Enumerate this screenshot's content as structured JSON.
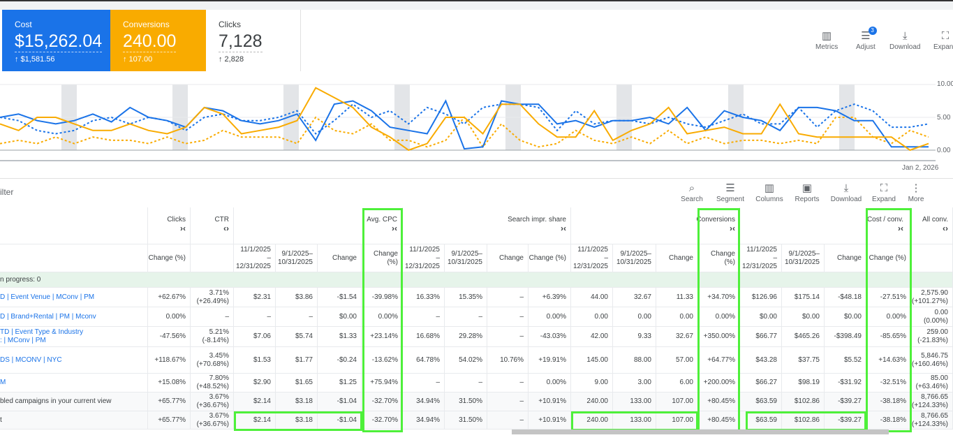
{
  "scorecards": [
    {
      "label": "Cost",
      "value": "$15,262.04",
      "delta": "↑ $1,581.56"
    },
    {
      "label": "Conversions",
      "value": "240.00",
      "delta": "↑ 107.00"
    },
    {
      "label": "Clicks",
      "value": "7,128",
      "delta": "↑ 2,828"
    }
  ],
  "chart_toolbar": {
    "metrics": "Metrics",
    "adjust": "Adjust",
    "adjust_badge": "3",
    "download": "Download",
    "expand": "Expand"
  },
  "chart": {
    "y_ticks": [
      "10.00",
      "5.00",
      "0.00"
    ],
    "x_label": "Jan 2, 2026",
    "colors": {
      "blue": "#1a73e8",
      "orange": "#f9ab00"
    },
    "series": {
      "cost": [
        5,
        5.5,
        4.5,
        4,
        4.5,
        5.5,
        4.3,
        6.5,
        5,
        4.5,
        3.5,
        6.5,
        6,
        4.5,
        4,
        4.5,
        5.5,
        1.5,
        7,
        7.5,
        6,
        3.5,
        3,
        2.5,
        7.5,
        0.2,
        0.5,
        7.5,
        7,
        7,
        4,
        4.5,
        3.5,
        4.5,
        4.5,
        5,
        4,
        6.5,
        3,
        6,
        5,
        4.5,
        3,
        6.5,
        6.5,
        6,
        4.5,
        4.5,
        0.5,
        0.5,
        0.5
      ],
      "cost_prev": [
        5,
        4.5,
        3,
        2.5,
        3,
        4.5,
        5,
        4,
        5,
        4.5,
        3,
        5,
        5.5,
        4.5,
        4.5,
        5,
        6,
        2.5,
        4.5,
        7,
        5,
        6,
        4,
        6.5,
        5.5,
        4,
        6.5,
        7,
        7,
        6.5,
        3,
        6,
        4,
        4.5,
        4.5,
        4,
        5,
        4,
        3.5,
        4.5,
        5.5,
        4,
        4,
        6.5,
        3.5,
        6,
        7,
        6,
        3.5,
        3.5,
        4
      ],
      "conv": [
        4,
        3,
        5,
        5,
        4,
        3,
        3,
        4,
        3,
        2.5,
        3.5,
        6.5,
        5.5,
        2.5,
        3,
        3.5,
        4.5,
        9.5,
        8,
        6.5,
        3.5,
        2,
        0,
        1,
        5,
        5,
        2.5,
        7,
        7,
        4,
        2,
        2,
        6,
        1.5,
        3,
        4,
        6.5,
        2.5,
        3,
        3.5,
        2.5,
        2.5,
        7,
        2.5,
        2,
        2,
        2,
        2,
        2,
        0,
        1
      ],
      "conv_prev": [
        1,
        1.5,
        1,
        2,
        1,
        2,
        1.5,
        1.5,
        1,
        2,
        1,
        1.5,
        3,
        2,
        2,
        2,
        1,
        5,
        3,
        2.5,
        4,
        1.5,
        1.5,
        0.5,
        1.5,
        5,
        0.5,
        4,
        1.5,
        0.5,
        1,
        3,
        1.5,
        1,
        2,
        1,
        3,
        1,
        2,
        1,
        1.5,
        1.5,
        1,
        1.5,
        1,
        5,
        5,
        2,
        1,
        3,
        2
      ]
    }
  },
  "filter_label": "ilter",
  "table_toolbar": [
    "Search",
    "Segment",
    "Columns",
    "Reports",
    "Download",
    "Expand",
    "More"
  ],
  "table": {
    "group_headers": [
      "Clicks",
      "CTR",
      "Avg. CPC",
      "Search impr. share",
      "Conversions",
      "Cost / conv.",
      "All conv."
    ],
    "sub_headers": [
      "Change (%)",
      "",
      "11/1/2025\n–\n12/31/2025",
      "9/1/2025–\n10/31/2025",
      "Change",
      "Change (%)",
      "11/1/2025\n–\n12/31/2025",
      "9/1/2025–\n10/31/2025",
      "Change",
      "Change (%)",
      "11/1/2025\n–\n12/31/2025",
      "9/1/2025–\n10/31/2025",
      "Change",
      "Change (%)",
      "11/1/2025\n–\n12/31/2025",
      "9/1/2025–\n10/31/2025",
      "Change",
      "Change (%)",
      ""
    ],
    "progress_label": "n progress: 0",
    "rows": [
      {
        "name": "D | Event Venue | MConv | PM",
        "cells": [
          "+62.67%",
          "3.71%\n(+26.49%)",
          "$2.31",
          "$3.86",
          "-$1.54",
          "-39.98%",
          "16.33%",
          "15.35%",
          "–",
          "+6.39%",
          "44.00",
          "32.67",
          "11.33",
          "+34.70%",
          "$126.96",
          "$175.14",
          "-$48.18",
          "-27.51%",
          "2,575.90\n(+101.27%)"
        ]
      },
      {
        "name": "D | Brand+Rental | PM | Mconv",
        "cells": [
          "0.00%",
          "–",
          "–",
          "–",
          "$0.00",
          "0.00%",
          "–",
          "–",
          "–",
          "0.00%",
          "0.00",
          "0.00",
          "0.00",
          "0.00%",
          "$0.00",
          "$0.00",
          "$0.00",
          "0.00%",
          "0.00\n(0.00%)"
        ]
      },
      {
        "name": "TD | Event Type & Industry\n: | MConv | PM",
        "cells": [
          "-47.56%",
          "5.21%\n(-8.14%)",
          "$7.06",
          "$5.74",
          "$1.33",
          "+23.14%",
          "16.68%",
          "29.28%",
          "–",
          "-43.03%",
          "42.00",
          "9.33",
          "32.67",
          "+350.00%",
          "$66.77",
          "$465.26",
          "-$398.49",
          "-85.65%",
          "259.00\n(-21.83%)"
        ]
      },
      {
        "name": "DS | MCONV | NYC",
        "cells": [
          "+118.67%",
          "3.45%\n(+70.68%)",
          "$1.53",
          "$1.77",
          "-$0.24",
          "-13.62%",
          "64.78%",
          "54.02%",
          "10.76%",
          "+19.91%",
          "145.00",
          "88.00",
          "57.00",
          "+64.77%",
          "$43.28",
          "$37.75",
          "$5.52",
          "+14.63%",
          "5,846.75\n(+160.46%)"
        ]
      },
      {
        "name": "M",
        "cells": [
          "+15.08%",
          "7.80%\n(+48.52%)",
          "$2.90",
          "$1.65",
          "$1.25",
          "+75.94%",
          "–",
          "–",
          "–",
          "0.00%",
          "9.00",
          "3.00",
          "6.00",
          "+200.00%",
          "$66.27",
          "$98.19",
          "-$31.92",
          "-32.51%",
          "85.00\n(+63.46%)"
        ]
      },
      {
        "name": "bled campaigns in your current view",
        "cells": [
          "+65.77%",
          "3.67%\n(+36.67%)",
          "$2.14",
          "$3.18",
          "-$1.04",
          "-32.70%",
          "34.94%",
          "31.50%",
          "–",
          "+10.91%",
          "240.00",
          "133.00",
          "107.00",
          "+80.45%",
          "$63.59",
          "$102.86",
          "-$39.27",
          "-38.18%",
          "8,766.65\n(+124.33%)"
        ]
      },
      {
        "name": "t",
        "cells": [
          "+65.77%",
          "3.67%\n(+36.67%)",
          "$2.14",
          "$3.18",
          "-$1.04",
          "-32.70%",
          "34.94%",
          "31.50%",
          "–",
          "+10.91%",
          "240.00",
          "133.00",
          "107.00",
          "+80.45%",
          "$63.59",
          "$102.86",
          "-$39.27",
          "-38.18%",
          "8,766.65\n(+124.33%)"
        ]
      }
    ]
  }
}
